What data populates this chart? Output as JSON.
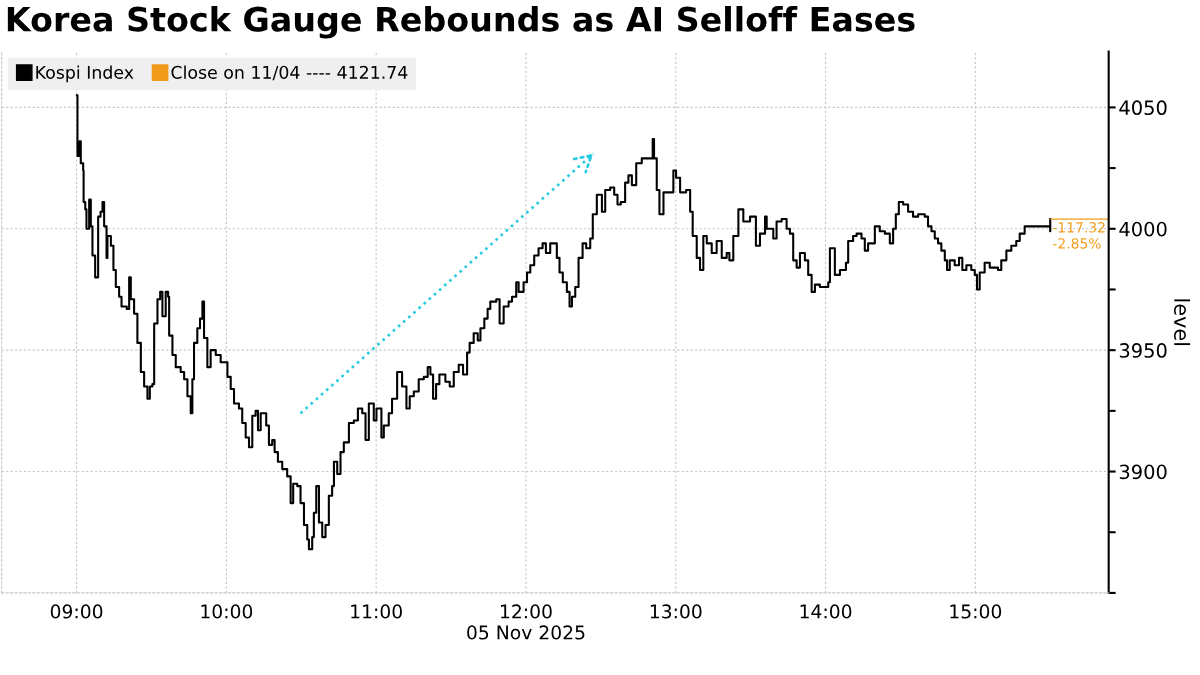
{
  "chart_data": {
    "type": "step",
    "title": "Korea Stock Gauge Rebounds as AI Selloff Eases",
    "ylabel": "level",
    "xlim": [
      8.5,
      15.89
    ],
    "ylim": [
      3850,
      4073
    ],
    "xticks": [
      {
        "value": 9,
        "label": "09:00"
      },
      {
        "value": 10,
        "label": "10:00"
      },
      {
        "value": 11,
        "label": "11:00"
      },
      {
        "value": 12,
        "label": "12:00\n05 Nov 2025"
      },
      {
        "value": 13,
        "label": "13:00"
      },
      {
        "value": 14,
        "label": "14:00"
      },
      {
        "value": 15,
        "label": "15:00"
      }
    ],
    "yticks": [
      {
        "value": 3850,
        "label": null
      },
      {
        "value": 3875,
        "label": null
      },
      3900,
      {
        "value": 3925,
        "label": null
      },
      3950,
      {
        "value": 3975,
        "label": null
      },
      4000,
      {
        "value": 4025,
        "label": null
      },
      4050
    ],
    "grid": true,
    "legend": "top left",
    "series": [
      {
        "name": "Kospi Index",
        "color": "#000000",
        "x": [
          9.002,
          9.006,
          9.02,
          9.028,
          9.044,
          9.047,
          9.058,
          9.066,
          9.084,
          9.095,
          9.106,
          9.124,
          9.144,
          9.16,
          9.173,
          9.184,
          9.2,
          9.206,
          9.229,
          9.246,
          9.262,
          9.284,
          9.3,
          9.335,
          9.351,
          9.362,
          9.384,
          9.406,
          9.429,
          9.451,
          9.473,
          9.489,
          9.506,
          9.518,
          9.54,
          9.558,
          9.573,
          9.595,
          9.611,
          9.618,
          9.64,
          9.662,
          9.695,
          9.718,
          9.74,
          9.762,
          9.773,
          9.784,
          9.806,
          9.824,
          9.84,
          9.851,
          9.873,
          9.895,
          9.929,
          9.962,
          10.007,
          10.029,
          10.051,
          10.084,
          10.106,
          10.129,
          10.151,
          10.173,
          10.195,
          10.211,
          10.229,
          10.266,
          10.284,
          10.306,
          10.322,
          10.344,
          10.373,
          10.406,
          10.429,
          10.446,
          10.473,
          10.495,
          10.518,
          10.54,
          10.551,
          10.573,
          10.584,
          10.6,
          10.618,
          10.64,
          10.662,
          10.684,
          10.706,
          10.718,
          10.74,
          10.762,
          10.784,
          10.818,
          10.851,
          10.878,
          10.907,
          10.929,
          10.951,
          10.984,
          11.002,
          11.035,
          11.051,
          11.084,
          11.106,
          11.14,
          11.173,
          11.202,
          11.224,
          11.251,
          11.284,
          11.318,
          11.344,
          11.362,
          11.38,
          11.4,
          11.422,
          11.462,
          11.491,
          11.518,
          11.551,
          11.58,
          11.607,
          11.624,
          11.651,
          11.678,
          11.696,
          11.722,
          11.744,
          11.762,
          11.802,
          11.824,
          11.851,
          11.884,
          11.907,
          11.935,
          11.951,
          11.984,
          12.007,
          12.029,
          12.055,
          12.084,
          12.111,
          12.133,
          12.162,
          12.184,
          12.206,
          12.224,
          12.246,
          12.273,
          12.291,
          12.307,
          12.329,
          12.351,
          12.378,
          12.402,
          12.429,
          12.446,
          12.473,
          12.507,
          12.529,
          12.562,
          12.589,
          12.611,
          12.633,
          12.662,
          12.684,
          12.707,
          12.736,
          12.773,
          12.807,
          12.846,
          12.855,
          12.873,
          12.891,
          12.918,
          12.951,
          12.984,
          13.002,
          13.029,
          13.069,
          13.096,
          13.113,
          13.14,
          13.162,
          13.184,
          13.207,
          13.24,
          13.273,
          13.307,
          13.34,
          13.358,
          13.384,
          13.418,
          13.451,
          13.496,
          13.535,
          13.562,
          13.596,
          13.607,
          13.651,
          13.673,
          13.707,
          13.74,
          13.762,
          13.784,
          13.807,
          13.829,
          13.862,
          13.884,
          13.907,
          13.929,
          13.962,
          13.996,
          14.018,
          14.029,
          14.062,
          14.096,
          14.136,
          14.151,
          14.184,
          14.207,
          14.24,
          14.262,
          14.284,
          14.329,
          14.362,
          14.396,
          14.429,
          14.451,
          14.469,
          14.489,
          14.518,
          14.551,
          14.584,
          14.618,
          14.662,
          14.684,
          14.707,
          14.729,
          14.751,
          14.773,
          14.796,
          14.811,
          14.829,
          14.862,
          14.891,
          14.913,
          14.94,
          14.973,
          14.996,
          15.011,
          15.029,
          15.062,
          15.096,
          15.151,
          15.173,
          15.207,
          15.24,
          15.273,
          15.296,
          15.329,
          15.496,
          15.499,
          15.5
        ],
        "values": [
          4055,
          4030,
          4036,
          4027,
          4024,
          4011,
          4008,
          4000,
          4012,
          4001,
          3989,
          3980,
          4005,
          4007,
          4011,
          4001,
          3988,
          3997,
          3993,
          3983,
          3976,
          3972,
          3968,
          3967,
          3980,
          3971,
          3965,
          3953,
          3941,
          3935,
          3930,
          3935,
          3936,
          3961,
          3971,
          3974,
          3964,
          3974,
          3972,
          3956,
          3948,
          3943,
          3941,
          3938,
          3931,
          3924,
          3938,
          3953,
          3959,
          3963,
          3970,
          3955,
          3943,
          3950,
          3948,
          3945,
          3939,
          3934,
          3928,
          3926,
          3920,
          3914,
          3910,
          3923,
          3925,
          3917,
          3924,
          3919,
          3911,
          3913,
          3908,
          3904,
          3901,
          3898,
          3887,
          3895,
          3894,
          3887,
          3878,
          3872,
          3868,
          3873,
          3883,
          3894,
          3879,
          3873,
          3878,
          3890,
          3894,
          3904,
          3899,
          3908,
          3912,
          3920,
          3921,
          3926,
          3924,
          3913,
          3928,
          3921,
          3926,
          3914,
          3919,
          3924,
          3930,
          3941,
          3935,
          3926,
          3931,
          3933,
          3938,
          3939,
          3943,
          3940,
          3930,
          3936,
          3940,
          3937,
          3935,
          3941,
          3944,
          3940,
          3949,
          3953,
          3957,
          3954,
          3959,
          3963,
          3967,
          3970,
          3971,
          3961,
          3968,
          3970,
          3972,
          3978,
          3974,
          3978,
          3982,
          3985,
          3989,
          3992,
          3994,
          3990,
          3994,
          3994,
          3988,
          3982,
          3978,
          3974,
          3968,
          3972,
          3976,
          3988,
          3994,
          3992,
          3996,
          4006,
          4014,
          4007,
          4016,
          4017,
          4014,
          4010,
          4011,
          4019,
          4022,
          4018,
          4027,
          4029,
          4029,
          4037,
          4029,
          4016,
          4006,
          4015,
          4015,
          4024,
          4021,
          4015,
          4016,
          4007,
          3997,
          3988,
          3983,
          3997,
          3994,
          3990,
          3995,
          3988,
          3990,
          3987,
          3997,
          4008,
          4003,
          4005,
          3993,
          3998,
          4005,
          4000,
          3996,
          4003,
          4004,
          4000,
          3998,
          3987,
          3984,
          3990,
          3987,
          3981,
          3974,
          3977,
          3976,
          3976,
          3978,
          3992,
          3981,
          3983,
          3986,
          3995,
          3997,
          3998,
          3996,
          3991,
          3994,
          4001,
          3999,
          3998,
          3994,
          4000,
          4006,
          4011,
          4010,
          4007,
          4005,
          4006,
          4005,
          4001,
          3999,
          3996,
          3994,
          3991,
          3987,
          3983,
          3987,
          3985,
          3988,
          3983,
          3985,
          3983,
          3981,
          3975,
          3982,
          3986,
          3984,
          3983,
          3987,
          3991,
          3993,
          3995,
          3998,
          4001,
          4001,
          3999,
          4004
        ]
      },
      {
        "name": "Close on 11/04 ---- 4121.74",
        "type": "line",
        "color": "#f29b1b",
        "x": [
          15.5,
          15.89
        ],
        "values": [
          4004,
          4004
        ]
      },
      {
        "type": "line",
        "color": "#27cbe0",
        "line_style": "dotted",
        "x": [
          10.495,
          12.451
        ],
        "values": [
          3924,
          4031
        ]
      }
    ],
    "annotations": [
      {
        "text": "-117.32\n-2.85%",
        "x": 15.5,
        "y": 4004
      }
    ]
  }
}
